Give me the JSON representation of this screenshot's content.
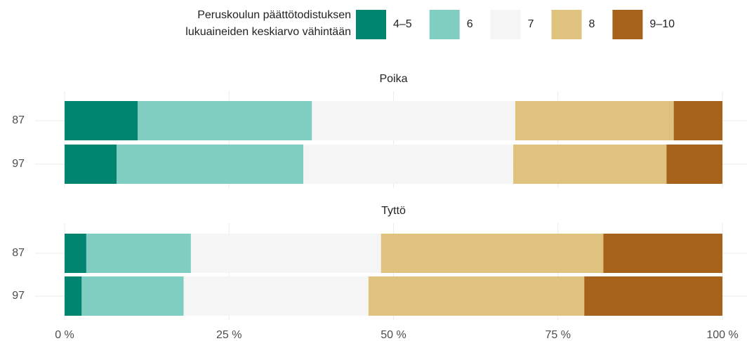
{
  "chart_data": {
    "type": "stacked-bar-horizontal",
    "legend_title": [
      "Peruskoulun päättötodistuksen",
      "lukuaineiden keskiarvo vähintään"
    ],
    "series": [
      {
        "name": "4–5",
        "color": "#018571"
      },
      {
        "name": "6",
        "color": "#80cdc1"
      },
      {
        "name": "7",
        "color": "#f5f5f5"
      },
      {
        "name": "8",
        "color": "#dfc27d"
      },
      {
        "name": "9–10",
        "color": "#a6611a"
      }
    ],
    "facets": [
      {
        "title": "Poika",
        "categories": [
          "87",
          "97"
        ],
        "series": [
          {
            "values": [
              11.1,
              7.9
            ]
          },
          {
            "values": [
              26.5,
              28.4
            ]
          },
          {
            "values": [
              30.9,
              31.9
            ]
          },
          {
            "values": [
              24.1,
              23.3
            ]
          },
          {
            "values": [
              7.4,
              8.5
            ]
          }
        ]
      },
      {
        "title": "Tyttö",
        "categories": [
          "87",
          "97"
        ],
        "series": [
          {
            "values": [
              3.3,
              2.6
            ]
          },
          {
            "values": [
              15.9,
              15.5
            ]
          },
          {
            "values": [
              28.9,
              28.1
            ]
          },
          {
            "values": [
              33.8,
              32.8
            ]
          },
          {
            "values": [
              18.1,
              21.0
            ]
          }
        ]
      }
    ],
    "xlim": [
      0,
      100
    ],
    "xticks": [
      {
        "value": 0,
        "label": "0 %"
      },
      {
        "value": 25,
        "label": "25 %"
      },
      {
        "value": 50,
        "label": "50 %"
      },
      {
        "value": 75,
        "label": "75 %"
      },
      {
        "value": 100,
        "label": "100 %"
      }
    ],
    "grid": true
  }
}
